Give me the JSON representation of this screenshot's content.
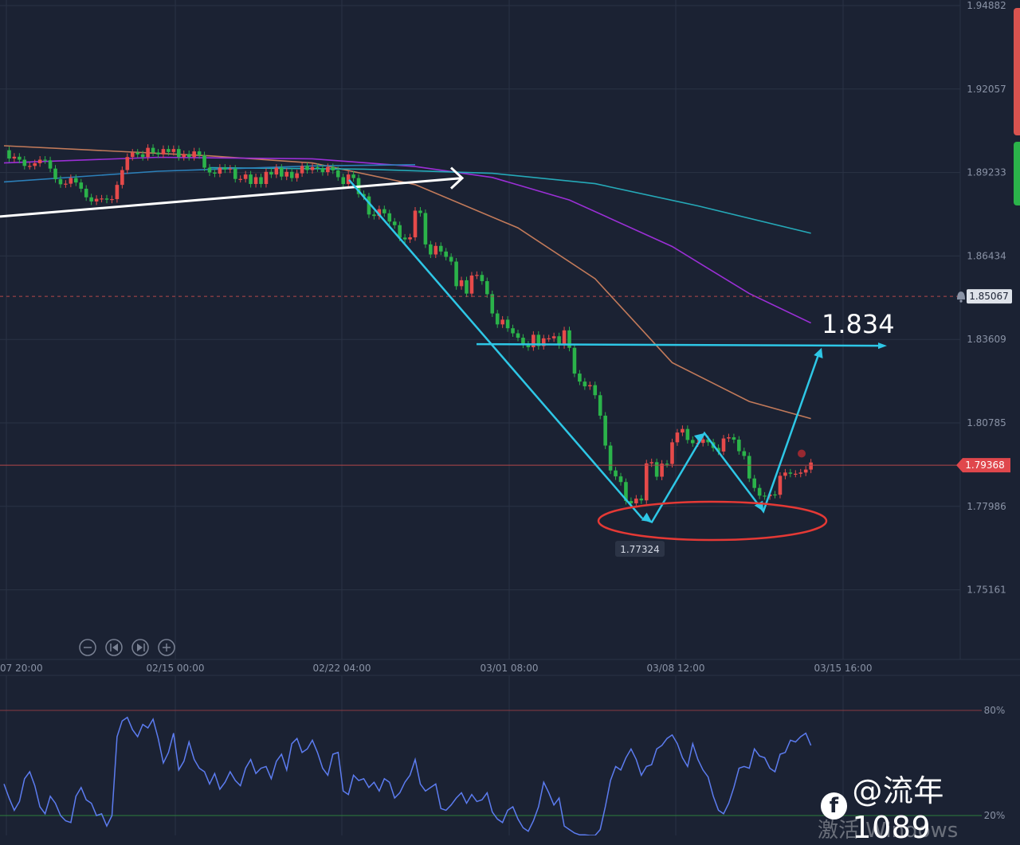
{
  "colors": {
    "background": "#1b2233",
    "grid": "#2a3244",
    "up": "#e64a4a",
    "down": "#2bb34a",
    "ma_orange": "#c27a5a",
    "ma_purple": "#9b2fd6",
    "ma_teal": "#25a9b8",
    "ma_blue": "#2c7fb8",
    "trend_white": "#ffffff",
    "annotation": "#2ec7e6",
    "ellipse": "#e53935",
    "oscillator": "#5c7cf0"
  },
  "chart_data": [
    {
      "type": "candlestick",
      "title": "",
      "xlabel": "",
      "ylabel": "",
      "ylim": [
        1.735,
        1.951
      ],
      "price_ticks": [
        "1.94882",
        "1.92057",
        "1.89233",
        "1.86434",
        "1.83609",
        "1.80785",
        "1.77986",
        "1.75161"
      ],
      "time_ticks": [
        "07 20:00",
        "02/15 00:00",
        "02/22 04:00",
        "03/01 08:00",
        "03/08 12:00",
        "03/15 16:00"
      ],
      "grid": true,
      "current_price": "1.79368",
      "alert_price": "1.85067",
      "low_label": "1.77324",
      "target_label": "1.834",
      "target_value": 1.834,
      "low_value": 1.77324,
      "close_series": [
        1.9,
        1.8972,
        1.8978,
        1.8968,
        1.8947,
        1.8947,
        1.8956,
        1.8968,
        1.8966,
        1.8938,
        1.8902,
        1.8885,
        1.8887,
        1.8906,
        1.8891,
        1.887,
        1.8841,
        1.8827,
        1.8836,
        1.8837,
        1.8833,
        1.8835,
        1.8883,
        1.8933,
        1.8977,
        1.8992,
        1.8986,
        1.8977,
        1.9008,
        1.8992,
        1.8986,
        1.9004,
        1.8994,
        1.9004,
        1.8977,
        1.8987,
        1.8977,
        1.8996,
        1.8983,
        1.8941,
        1.8925,
        1.8921,
        1.8941,
        1.8935,
        1.8938,
        1.8903,
        1.8903,
        1.8918,
        1.8886,
        1.8909,
        1.8886,
        1.8927,
        1.8918,
        1.8941,
        1.8911,
        1.8927,
        1.8906,
        1.8922,
        1.8947,
        1.8933,
        1.8943,
        1.8939,
        1.8926,
        1.8943,
        1.8932,
        1.8909,
        1.8886,
        1.8918,
        1.8906,
        1.8852,
        1.8844,
        1.8783,
        1.8778,
        1.8801,
        1.8787,
        1.8759,
        1.8747,
        1.8705,
        1.8699,
        1.8706,
        1.8796,
        1.8788,
        1.8682,
        1.8648,
        1.8677,
        1.8658,
        1.864,
        1.8624,
        1.8541,
        1.8561,
        1.8516,
        1.8577,
        1.8579,
        1.8558,
        1.8514,
        1.8449,
        1.8412,
        1.8428,
        1.8399,
        1.8382,
        1.8367,
        1.8344,
        1.8335,
        1.8377,
        1.8339,
        1.8365,
        1.8365,
        1.8372,
        1.8342,
        1.8392,
        1.8333,
        1.8246,
        1.8219,
        1.8203,
        1.8207,
        1.8173,
        1.8104,
        1.8003,
        1.7919,
        1.7899,
        1.788,
        1.7816,
        1.7808,
        1.7824,
        1.7818,
        1.7943,
        1.7947,
        1.7898,
        1.7942,
        1.7941,
        1.8014,
        1.8047,
        1.8059,
        1.8022,
        1.8011,
        1.8012,
        1.8024,
        1.8014,
        1.7995,
        1.7983,
        1.8027,
        1.8031,
        1.8023,
        1.7984,
        1.7968,
        1.7892,
        1.786,
        1.7834,
        1.7832,
        1.7838,
        1.7837,
        1.7901,
        1.7912,
        1.7908,
        1.7908,
        1.7912,
        1.7922,
        1.7946
      ],
      "moving_averages": [
        {
          "color_key": "ma_orange",
          "values": [
            [
              0,
              1.9015
            ],
            [
              40,
              1.8981
            ],
            [
              60,
              1.8957
            ],
            [
              80,
              1.8884
            ],
            [
              100,
              1.8738
            ],
            [
              115,
              1.8566
            ],
            [
              130,
              1.8283
            ],
            [
              145,
              1.8152
            ],
            [
              157,
              1.8094
            ]
          ]
        },
        {
          "color_key": "ma_purple",
          "values": [
            [
              0,
              1.8957
            ],
            [
              30,
              1.8976
            ],
            [
              60,
              1.8971
            ],
            [
              80,
              1.8945
            ],
            [
              95,
              1.8908
            ],
            [
              110,
              1.8832
            ],
            [
              130,
              1.8675
            ],
            [
              145,
              1.8516
            ],
            [
              157,
              1.8417
            ]
          ]
        },
        {
          "color_key": "ma_teal",
          "values": [
            [
              40,
              1.8941
            ],
            [
              70,
              1.8936
            ],
            [
              95,
              1.8922
            ],
            [
              115,
              1.8887
            ],
            [
              135,
              1.8812
            ],
            [
              157,
              1.872
            ]
          ]
        },
        {
          "color_key": "ma_blue",
          "values": [
            [
              0,
              1.8893
            ],
            [
              30,
              1.8929
            ],
            [
              60,
              1.8947
            ],
            [
              80,
              1.8951
            ]
          ]
        }
      ]
    },
    {
      "type": "line",
      "title": "",
      "ylabel": "",
      "y_ticks": [
        "80%",
        "20%"
      ],
      "ylim": [
        0,
        100
      ],
      "values": [
        38,
        30,
        23,
        28,
        41,
        45,
        37,
        25,
        21,
        31,
        27,
        20,
        17,
        16,
        31,
        36,
        29,
        27,
        20,
        21,
        14,
        20,
        65,
        74,
        76,
        69,
        65,
        72,
        70,
        75,
        64,
        50,
        56,
        67,
        46,
        51,
        62,
        52,
        47,
        45,
        38,
        44,
        35,
        39,
        45,
        40,
        37,
        47,
        52,
        44,
        47,
        48,
        41,
        51,
        55,
        46,
        61,
        64,
        56,
        58,
        63,
        56,
        47,
        43,
        55,
        56,
        34,
        32,
        43,
        40,
        41,
        36,
        39,
        34,
        41,
        39,
        30,
        33,
        39,
        43,
        52,
        38,
        34,
        36,
        38,
        24,
        23,
        26,
        30,
        33,
        27,
        32,
        28,
        29,
        33,
        22,
        18,
        16,
        23,
        25,
        18,
        13,
        11,
        17,
        25,
        39,
        33,
        26,
        30,
        14,
        12,
        10,
        9,
        9,
        7,
        8,
        12,
        25,
        40,
        48,
        46,
        53,
        58,
        52,
        43,
        48,
        49,
        58,
        60,
        64,
        66,
        61,
        53,
        48,
        61,
        52,
        46,
        42,
        31,
        23,
        21,
        27,
        36,
        47,
        48,
        47,
        58,
        54,
        53,
        47,
        45,
        55,
        56,
        63,
        62,
        65,
        67,
        60
      ]
    }
  ],
  "controls": {
    "zoom_out_icon": "minus-circle-icon",
    "step_back_icon": "skip-back-circle-icon",
    "step_forward_icon": "skip-forward-circle-icon",
    "zoom_in_icon": "plus-circle-icon"
  },
  "watermark": {
    "icon": "facebook-icon",
    "icon_glyph": "f",
    "handle": "@流年1089"
  },
  "os_overlay": {
    "activation_text": "激活 Windows"
  }
}
